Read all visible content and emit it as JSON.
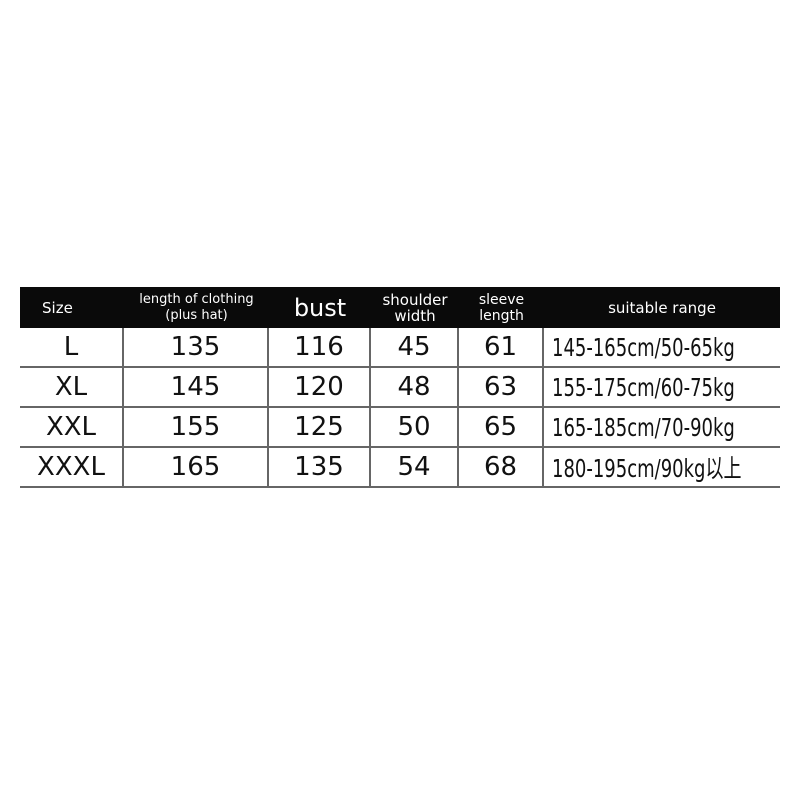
{
  "headers": [
    "Size",
    "length of clothing\n(plus hat)",
    "bust",
    "shoulder\nwidth",
    "sleeve\nlength",
    "suitable range"
  ],
  "rows": [
    [
      "L",
      "135",
      "116",
      "45",
      "61",
      "145-165cm/50-65kg"
    ],
    [
      "XL",
      "145",
      "120",
      "48",
      "63",
      "155-175cm/60-75kg"
    ],
    [
      "XXL",
      "155",
      "125",
      "50",
      "65",
      "165-185cm/70-90kg"
    ],
    [
      "XXXL",
      "165",
      "135",
      "54",
      "68",
      "180-195cm/90kg以上"
    ]
  ],
  "colors": {
    "header_bg": "#0a0a0a",
    "header_text": "#ffffff",
    "grid": "#666666"
  }
}
